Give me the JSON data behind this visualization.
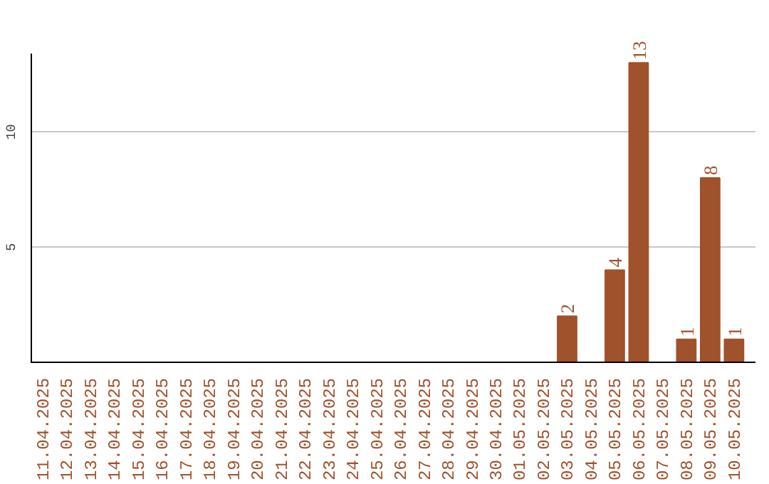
{
  "chart_data": {
    "type": "bar",
    "categories": [
      "11.04.2025",
      "12.04.2025",
      "13.04.2025",
      "14.04.2025",
      "15.04.2025",
      "16.04.2025",
      "17.04.2025",
      "18.04.2025",
      "19.04.2025",
      "20.04.2025",
      "21.04.2025",
      "22.04.2025",
      "23.04.2025",
      "24.04.2025",
      "25.04.2025",
      "26.04.2025",
      "27.04.2025",
      "28.04.2025",
      "29.04.2025",
      "30.04.2025",
      "01.05.2025",
      "02.05.2025",
      "03.05.2025",
      "04.05.2025",
      "05.05.2025",
      "06.05.2025",
      "07.05.2025",
      "08.05.2025",
      "09.05.2025",
      "10.05.2025"
    ],
    "values": [
      0,
      0,
      0,
      0,
      0,
      0,
      0,
      0,
      0,
      0,
      0,
      0,
      0,
      0,
      0,
      0,
      0,
      0,
      0,
      0,
      0,
      0,
      2,
      0,
      4,
      13,
      0,
      1,
      8,
      1
    ],
    "value_labels": [
      null,
      null,
      null,
      null,
      null,
      null,
      null,
      null,
      null,
      null,
      null,
      null,
      null,
      null,
      null,
      null,
      null,
      null,
      null,
      null,
      null,
      null,
      "2",
      null,
      "4",
      "13",
      null,
      "1",
      "8",
      "1"
    ],
    "color": "#a0522d",
    "ylim": [
      0,
      13.4
    ],
    "yticks": [
      5,
      10
    ],
    "grid": "y"
  }
}
